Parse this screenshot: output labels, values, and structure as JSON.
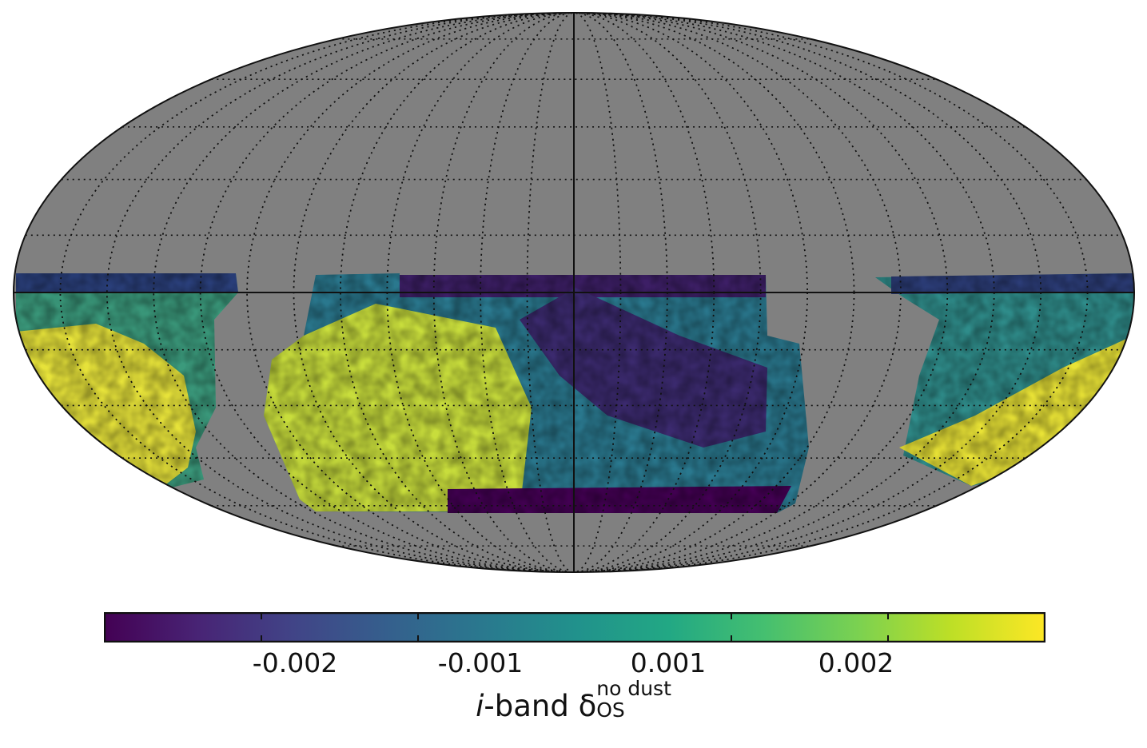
{
  "chart_data": {
    "type": "heatmap",
    "projection": "mollweide",
    "title": "",
    "background_color": "#808080",
    "graticule": "dotted",
    "colormap": "viridis",
    "colorbar": {
      "ticks": [
        -0.002,
        -0.001,
        0.001,
        0.002
      ],
      "tick_labels": [
        "-0.002",
        "-0.001",
        "0.001",
        "0.002"
      ],
      "range": [
        -0.003,
        0.003
      ],
      "label_prefix": "i",
      "label_text": "-band δ",
      "label_sub": "OS",
      "label_sup": "no dust"
    }
  }
}
